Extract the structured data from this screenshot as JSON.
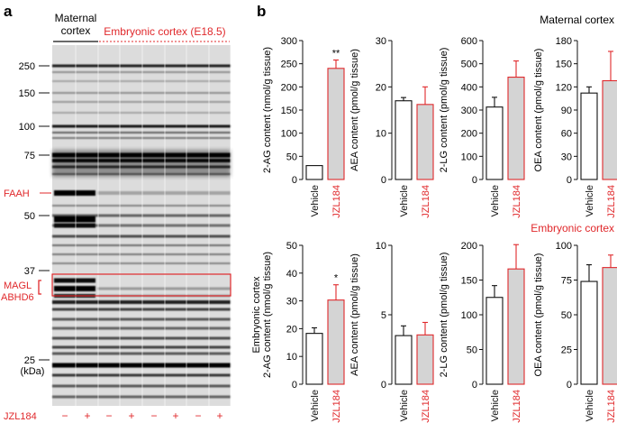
{
  "panel_a": {
    "label": "a",
    "maternal_header": [
      "Maternal",
      "cortex"
    ],
    "embryonic_header": "Embryonic cortex (E18.5)",
    "mw_markers": [
      "250",
      "150",
      "100",
      "75",
      "50",
      "37",
      "25"
    ],
    "kda_label": "(kDa)",
    "protein_labels": {
      "faah": "FAAH",
      "magl": "MAGL",
      "abhd6": "ABHD6"
    },
    "treatment_label": "JZL184",
    "lane_signs": [
      "−",
      "+",
      "−",
      "+",
      "−",
      "+",
      "−",
      "+"
    ],
    "colors": {
      "accent": "#e0282b",
      "text": "#111111"
    }
  },
  "panel_b": {
    "label": "b",
    "row_labels": {
      "maternal": "Maternal cortex",
      "embryonic": "Embryonic cortex"
    },
    "categories": [
      "Vehicle",
      "JZL184"
    ],
    "colors": {
      "vehicle_fill": "#ffffff",
      "jzl_fill": "#d4d4d4",
      "jzl_edge": "#e0282b",
      "axis": "#111111"
    }
  },
  "chart_data": [
    {
      "type": "bar",
      "row": "Maternal cortex",
      "ylabel": "2-AG content (nmol/g tissue)",
      "ylim": [
        0,
        300
      ],
      "yticks": [
        "0",
        "50",
        "100",
        "150",
        "200",
        "250",
        "300"
      ],
      "categories": [
        "Vehicle",
        "JZL184"
      ],
      "values": [
        30,
        240
      ],
      "errors": [
        0,
        18
      ],
      "annotation": "**"
    },
    {
      "type": "bar",
      "row": "Maternal cortex",
      "ylabel": "AEA content (pmol/g tissue)",
      "ylim": [
        0,
        30
      ],
      "yticks": [
        "0",
        "10",
        "20",
        "30"
      ],
      "categories": [
        "Vehicle",
        "JZL184"
      ],
      "values": [
        17,
        16.2
      ],
      "errors": [
        0.7,
        3.8
      ],
      "annotation": ""
    },
    {
      "type": "bar",
      "row": "Maternal cortex",
      "ylabel": "2-LG content (pmol/g tissue)",
      "ylim": [
        0,
        600
      ],
      "yticks": [
        "0",
        "100",
        "200",
        "300",
        "400",
        "500",
        "600"
      ],
      "categories": [
        "Vehicle",
        "JZL184"
      ],
      "values": [
        313,
        442
      ],
      "errors": [
        42,
        70
      ],
      "annotation": ""
    },
    {
      "type": "bar",
      "row": "Maternal cortex",
      "ylabel": "OEA content (pmol/g tissue)",
      "ylim": [
        0,
        180
      ],
      "yticks": [
        "0",
        "30",
        "60",
        "90",
        "120",
        "150",
        "180"
      ],
      "categories": [
        "Vehicle",
        "JZL184"
      ],
      "values": [
        112,
        128
      ],
      "errors": [
        8,
        38
      ],
      "annotation": ""
    },
    {
      "type": "bar",
      "row": "Embryonic cortex",
      "ylabel": "2-AG content (nmol/g tissue)",
      "ylabel_top": "Embryonic cortex",
      "ylim": [
        0,
        50
      ],
      "yticks": [
        "0",
        "10",
        "20",
        "30",
        "40",
        "50"
      ],
      "categories": [
        "Vehicle",
        "JZL184"
      ],
      "values": [
        18.3,
        30.3
      ],
      "errors": [
        2,
        5.5
      ],
      "annotation": "*"
    },
    {
      "type": "bar",
      "row": "Embryonic cortex",
      "ylabel": "AEA content (pmol/g tissue)",
      "ylim": [
        0,
        10
      ],
      "yticks": [
        "0",
        "5",
        "10"
      ],
      "categories": [
        "Vehicle",
        "JZL184"
      ],
      "values": [
        3.5,
        3.55
      ],
      "errors": [
        0.7,
        0.9
      ],
      "annotation": ""
    },
    {
      "type": "bar",
      "row": "Embryonic cortex",
      "ylabel": "2-LG content (pmol/g tissue)",
      "ylim": [
        0,
        200
      ],
      "yticks": [
        "0",
        "50",
        "100",
        "150",
        "200"
      ],
      "categories": [
        "Vehicle",
        "JZL184"
      ],
      "values": [
        125,
        166
      ],
      "errors": [
        17,
        35
      ],
      "annotation": ""
    },
    {
      "type": "bar",
      "row": "Embryonic cortex",
      "ylabel": "OEA content (pmol/g tissue)",
      "ylim": [
        0,
        100
      ],
      "yticks": [
        "0",
        "25",
        "50",
        "75",
        "100"
      ],
      "categories": [
        "Vehicle",
        "JZL184"
      ],
      "values": [
        74,
        84
      ],
      "errors": [
        12,
        9
      ],
      "annotation": ""
    }
  ]
}
